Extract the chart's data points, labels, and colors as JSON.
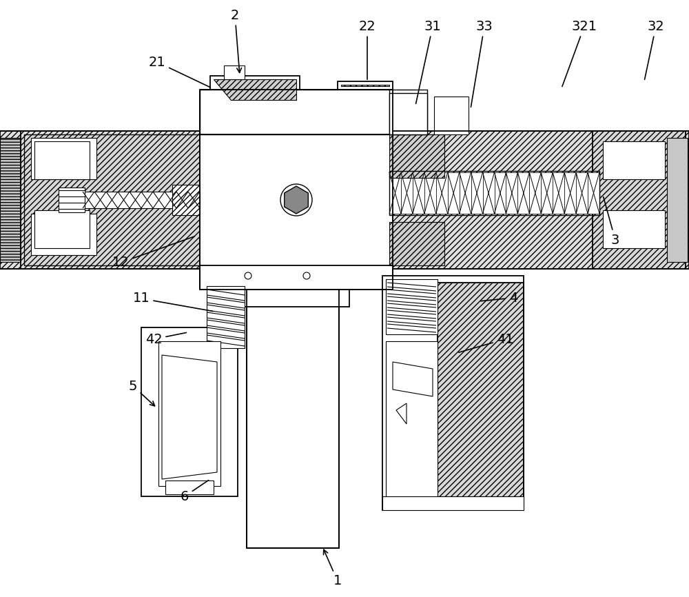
{
  "background_color": "#ffffff",
  "line_color": "#000000",
  "figsize": [
    10.0,
    8.66
  ],
  "dpi": 100,
  "labels": [
    [
      "1",
      490,
      843,
      468,
      793,
      true
    ],
    [
      "2",
      341,
      22,
      348,
      110,
      true
    ],
    [
      "3",
      893,
      348,
      875,
      283,
      false
    ],
    [
      "4",
      745,
      432,
      695,
      437,
      false
    ],
    [
      "5",
      193,
      560,
      228,
      592,
      true
    ],
    [
      "6",
      268,
      720,
      305,
      695,
      false
    ],
    [
      "11",
      205,
      433,
      312,
      452,
      false
    ],
    [
      "12",
      175,
      381,
      285,
      342,
      false
    ],
    [
      "21",
      228,
      90,
      308,
      128,
      false
    ],
    [
      "22",
      533,
      38,
      533,
      118,
      false
    ],
    [
      "31",
      628,
      38,
      603,
      153,
      false
    ],
    [
      "32",
      952,
      38,
      935,
      118,
      false
    ],
    [
      "33",
      703,
      38,
      683,
      158,
      false
    ],
    [
      "321",
      848,
      38,
      815,
      128,
      false
    ],
    [
      "41",
      733,
      492,
      663,
      512,
      false
    ],
    [
      "42",
      223,
      492,
      273,
      482,
      false
    ]
  ]
}
